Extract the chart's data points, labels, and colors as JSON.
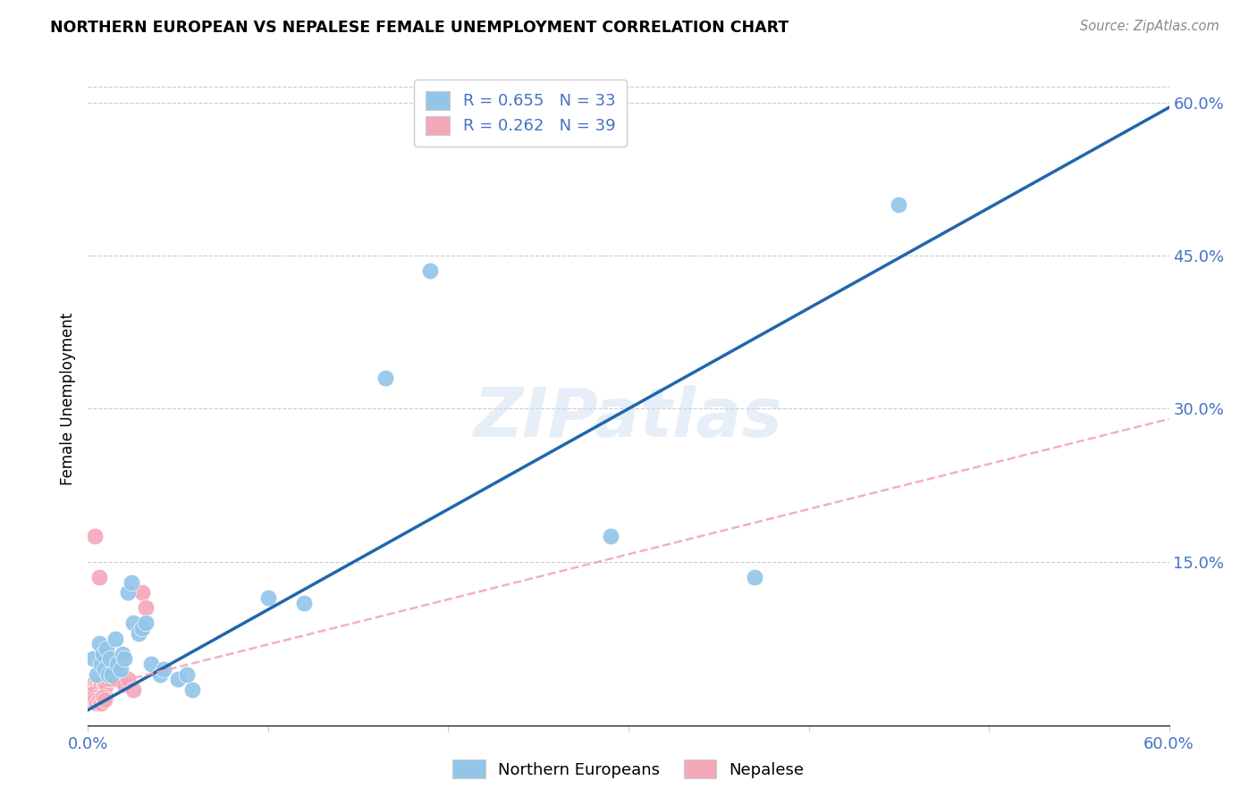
{
  "title": "NORTHERN EUROPEAN VS NEPALESE FEMALE UNEMPLOYMENT CORRELATION CHART",
  "source": "Source: ZipAtlas.com",
  "ylabel": "Female Unemployment",
  "watermark": "ZIPatlas",
  "xlim": [
    0.0,
    0.6
  ],
  "ylim": [
    -0.01,
    0.63
  ],
  "xticks": [
    0.0,
    0.1,
    0.2,
    0.3,
    0.4,
    0.5,
    0.6
  ],
  "ytick_labels": [
    "60.0%",
    "45.0%",
    "30.0%",
    "15.0%"
  ],
  "ytick_values": [
    0.6,
    0.45,
    0.3,
    0.15
  ],
  "blue_color": "#92C5E8",
  "pink_color": "#F4A7B9",
  "blue_line_color": "#2166AC",
  "pink_line_color": "#F4A7B9",
  "legend_label_blue": "Northern Europeans",
  "legend_label_pink": "Nepalese",
  "blue_scatter": [
    [
      0.003,
      0.055
    ],
    [
      0.005,
      0.04
    ],
    [
      0.006,
      0.07
    ],
    [
      0.007,
      0.05
    ],
    [
      0.008,
      0.06
    ],
    [
      0.009,
      0.045
    ],
    [
      0.01,
      0.065
    ],
    [
      0.011,
      0.04
    ],
    [
      0.012,
      0.055
    ],
    [
      0.013,
      0.04
    ],
    [
      0.015,
      0.075
    ],
    [
      0.016,
      0.05
    ],
    [
      0.018,
      0.045
    ],
    [
      0.019,
      0.06
    ],
    [
      0.02,
      0.055
    ],
    [
      0.022,
      0.12
    ],
    [
      0.024,
      0.13
    ],
    [
      0.025,
      0.09
    ],
    [
      0.028,
      0.08
    ],
    [
      0.03,
      0.085
    ],
    [
      0.032,
      0.09
    ],
    [
      0.035,
      0.05
    ],
    [
      0.04,
      0.04
    ],
    [
      0.042,
      0.045
    ],
    [
      0.05,
      0.035
    ],
    [
      0.055,
      0.04
    ],
    [
      0.058,
      0.025
    ],
    [
      0.1,
      0.115
    ],
    [
      0.12,
      0.11
    ],
    [
      0.165,
      0.33
    ],
    [
      0.19,
      0.435
    ],
    [
      0.29,
      0.175
    ],
    [
      0.37,
      0.135
    ],
    [
      0.45,
      0.5
    ]
  ],
  "pink_scatter": [
    [
      0.002,
      0.025
    ],
    [
      0.003,
      0.03
    ],
    [
      0.003,
      0.02
    ],
    [
      0.004,
      0.025
    ],
    [
      0.004,
      0.02
    ],
    [
      0.005,
      0.03
    ],
    [
      0.005,
      0.025
    ],
    [
      0.006,
      0.035
    ],
    [
      0.006,
      0.025
    ],
    [
      0.007,
      0.03
    ],
    [
      0.007,
      0.02
    ],
    [
      0.008,
      0.035
    ],
    [
      0.008,
      0.025
    ],
    [
      0.009,
      0.03
    ],
    [
      0.009,
      0.02
    ],
    [
      0.01,
      0.04
    ],
    [
      0.01,
      0.03
    ],
    [
      0.011,
      0.035
    ],
    [
      0.012,
      0.04
    ],
    [
      0.013,
      0.035
    ],
    [
      0.014,
      0.04
    ],
    [
      0.015,
      0.045
    ],
    [
      0.016,
      0.035
    ],
    [
      0.017,
      0.04
    ],
    [
      0.02,
      0.03
    ],
    [
      0.022,
      0.035
    ],
    [
      0.025,
      0.025
    ],
    [
      0.03,
      0.12
    ],
    [
      0.032,
      0.105
    ],
    [
      0.004,
      0.175
    ],
    [
      0.006,
      0.135
    ],
    [
      0.002,
      0.015
    ],
    [
      0.003,
      0.018
    ],
    [
      0.004,
      0.015
    ],
    [
      0.005,
      0.012
    ],
    [
      0.006,
      0.015
    ],
    [
      0.007,
      0.012
    ],
    [
      0.008,
      0.018
    ],
    [
      0.009,
      0.015
    ]
  ],
  "blue_trendline_x": [
    0.0,
    0.6
  ],
  "blue_trendline_y": [
    0.005,
    0.595
  ],
  "pink_trendline_x": [
    0.0,
    0.6
  ],
  "pink_trendline_y": [
    0.025,
    0.29
  ],
  "background_color": "#ffffff",
  "grid_color": "#cccccc"
}
